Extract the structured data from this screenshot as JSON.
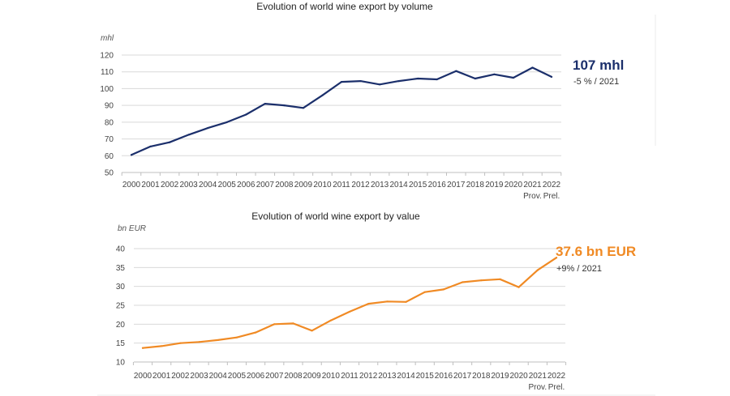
{
  "chart_data": [
    {
      "type": "line",
      "title": "Evolution of world wine export by volume",
      "unit_label": "mhl",
      "categories": [
        "2000",
        "2001",
        "2002",
        "2003",
        "2004",
        "2005",
        "2006",
        "2007",
        "2008",
        "2009",
        "2010",
        "2011",
        "2012",
        "2013",
        "2014",
        "2015",
        "2016",
        "2017",
        "2018",
        "2019",
        "2020",
        "2021",
        "2022"
      ],
      "category_notes": {
        "2021": "Prov.",
        "2022": "Prel."
      },
      "series": [
        {
          "values": [
            60.5,
            65.5,
            68,
            72.5,
            76.5,
            80,
            84.5,
            91,
            90,
            88.5,
            96,
            104,
            104.5,
            102.5,
            104.5,
            106,
            105.5,
            110.5,
            106,
            108.5,
            106.5,
            112.5,
            107
          ]
        }
      ],
      "ylim": [
        50,
        120
      ],
      "yticks": [
        50,
        60,
        70,
        80,
        90,
        100,
        110,
        120
      ],
      "grid": true,
      "color": "#1b2f6b",
      "callout": {
        "value": "107 mhl",
        "change": "-5 % / 2021"
      }
    },
    {
      "type": "line",
      "title": "Evolution of world wine export by value",
      "unit_label": "bn EUR",
      "categories": [
        "2000",
        "2001",
        "2002",
        "2003",
        "2004",
        "2005",
        "2006",
        "2007",
        "2008",
        "2009",
        "2010",
        "2011",
        "2012",
        "2013",
        "2014",
        "2015",
        "2016",
        "2017",
        "2018",
        "2019",
        "2020",
        "2021",
        "2022"
      ],
      "category_notes": {
        "2021": "Prov.",
        "2022": "Prel."
      },
      "series": [
        {
          "values": [
            13.7,
            14.2,
            15.0,
            15.3,
            15.8,
            16.5,
            17.8,
            20.0,
            20.2,
            18.3,
            21.0,
            23.3,
            25.4,
            26.0,
            25.9,
            28.5,
            29.2,
            31.1,
            31.6,
            31.9,
            29.8,
            34.3,
            37.6
          ]
        }
      ],
      "ylim": [
        10,
        40
      ],
      "yticks": [
        10,
        15,
        20,
        25,
        30,
        35,
        40
      ],
      "grid": true,
      "color": "#f08a24",
      "callout": {
        "value": "37.6 bn EUR",
        "change": "+9% / 2021"
      }
    }
  ]
}
